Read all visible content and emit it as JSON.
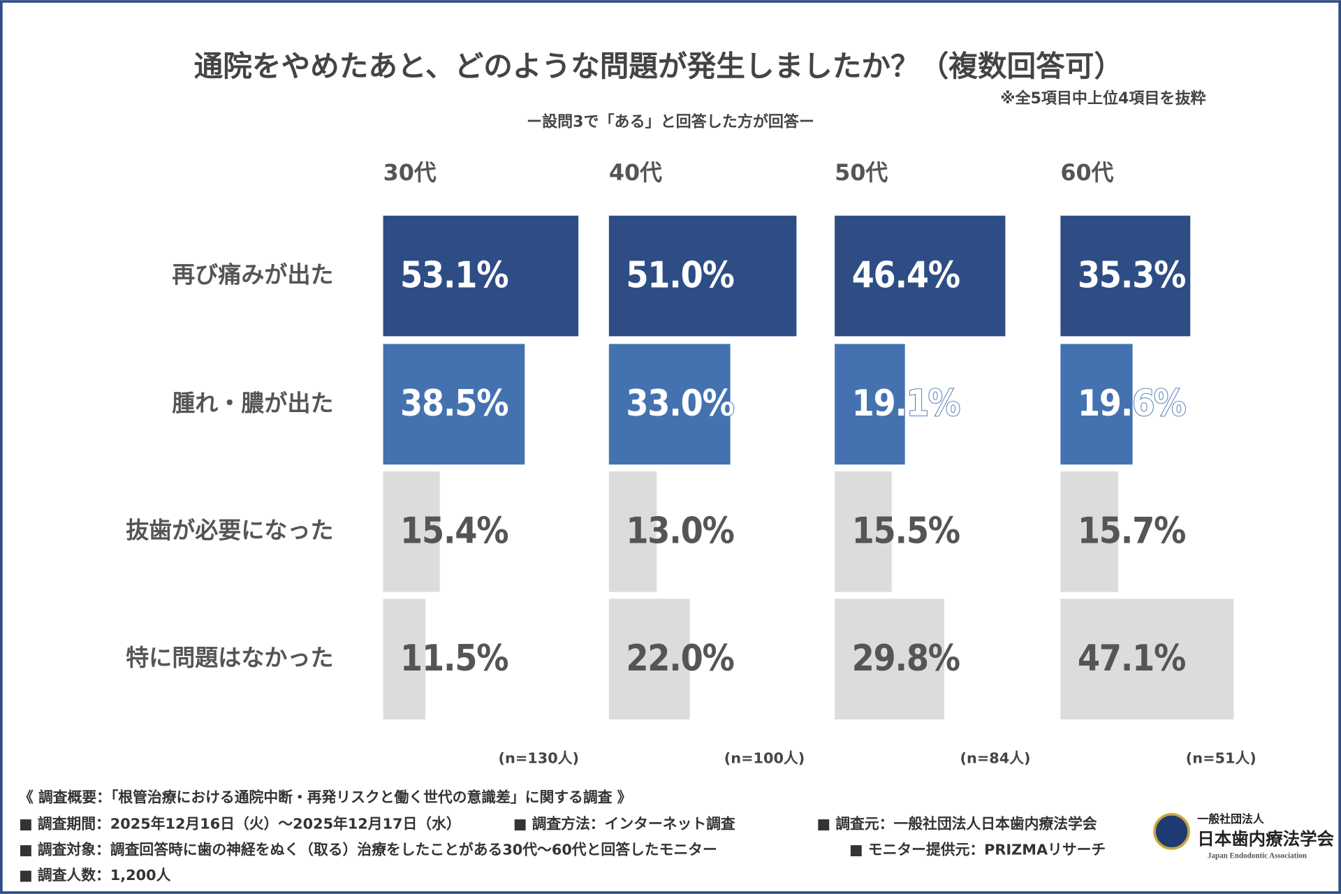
{
  "chart_data": {
    "type": "bar",
    "title": "通院をやめたあと、どのような問題が発生しましたか？（複数回答可）",
    "note": "※全5項目中上位4項目を抜粋",
    "subtitle": "ー設問3で「ある」と回答した方が回答ー",
    "categories": [
      "再び痛みが出た",
      "腫れ・膿が出た",
      "抜歯が必要になった",
      "特に問題はなかった"
    ],
    "colors": [
      "#2e4d85",
      "#4472b0",
      "#dcdcdc",
      "#dcdcdc"
    ],
    "label_colors": [
      "#ffffff",
      "#ffffff",
      "#555555",
      "#555555"
    ],
    "series": [
      {
        "name": "30代",
        "n": "(n=130人)",
        "values": [
          53.1,
          38.5,
          15.4,
          11.5
        ],
        "value_labels": [
          "53.1%",
          "38.5%",
          "15.4%",
          "11.5%"
        ]
      },
      {
        "name": "40代",
        "n": "(n=100人)",
        "values": [
          51.0,
          33.0,
          13.0,
          22.0
        ],
        "value_labels": [
          "51.0%",
          "33.0%",
          "13.0%",
          "22.0%"
        ]
      },
      {
        "name": "50代",
        "n": "(n=84人)",
        "values": [
          46.4,
          19.1,
          15.5,
          29.8
        ],
        "value_labels": [
          "46.4%",
          "19.1%",
          "15.5%",
          "29.8%"
        ]
      },
      {
        "name": "60代",
        "n": "(n=51人)",
        "values": [
          35.3,
          19.6,
          15.7,
          47.1
        ],
        "value_labels": [
          "35.3%",
          "19.6%",
          "15.7%",
          "47.1%"
        ]
      }
    ]
  },
  "footer": {
    "heading": "《 調査概要：「根管治療における通院中断・再発リスクと働く世代の意識差」に関する調査 》",
    "items": [
      "■ 調査期間：2025年12月16日（火）〜2025年12月17日（水）",
      "■ 調査方法：インターネット調査",
      "■ 調査元：一般社団法人日本歯内療法学会",
      "■ 調査対象：調査回答時に歯の神経をぬく（取る）治療をしたことがある30代〜60代と回答したモニター",
      "■ モニター提供元：PRIZMAリサーチ",
      "■ 調査人数：1,200人"
    ]
  },
  "logo": {
    "org_type": "一般社団法人",
    "name": "日本歯内療法学会",
    "english": "Japan Endodontic Association"
  }
}
